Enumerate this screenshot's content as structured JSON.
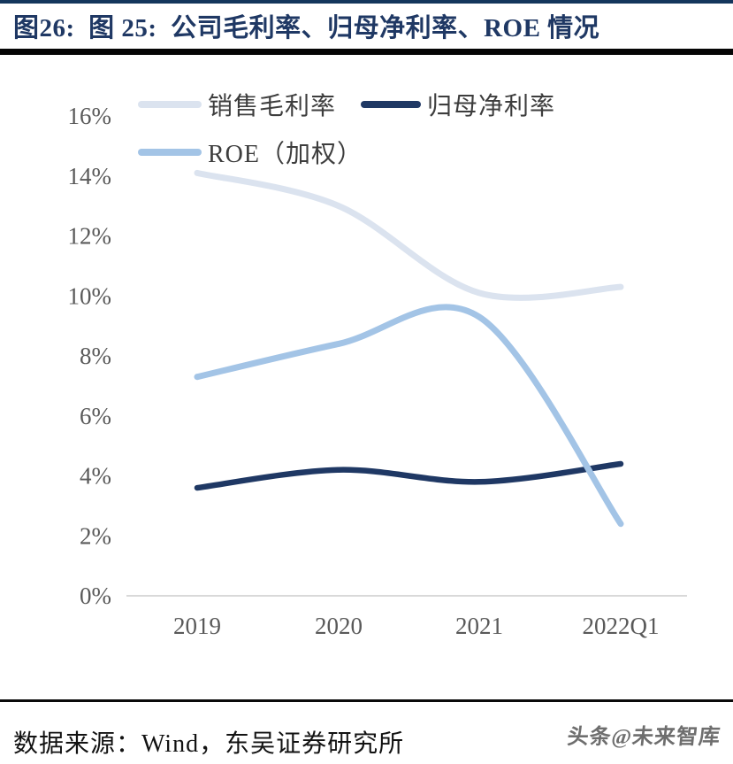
{
  "page": {
    "title": "图26:  图 25:  公司毛利率、归母净利率、ROE 情况",
    "footer_source": "数据来源：Wind，东吴证券研究所",
    "watermark": "头条@未来智库"
  },
  "colors": {
    "title_navy": "#1f3864",
    "gross_margin_line": "#dbe3ef",
    "net_margin_line": "#1f3864",
    "roe_line": "#a3c4e6",
    "axis_line": "#d9d9d9",
    "axis_text": "#595959"
  },
  "legend": {
    "items": [
      {
        "label": "销售毛利率",
        "color": "#dbe3ef"
      },
      {
        "label": "归母净利率",
        "color": "#1f3864"
      },
      {
        "label": "ROE（加权）",
        "color": "#a3c4e6"
      }
    ]
  },
  "chart_data": {
    "type": "line",
    "title": "公司毛利率、归母净利率、ROE 情况",
    "categories": [
      "2019",
      "2020",
      "2021",
      "2022Q1"
    ],
    "series": [
      {
        "id": "gross-margin",
        "name": "销售毛利率",
        "color": "#dbe3ef",
        "width": 7,
        "values": [
          14.1,
          13.0,
          10.1,
          10.3
        ]
      },
      {
        "id": "net-margin",
        "name": "归母净利率",
        "color": "#1f3864",
        "width": 6.5,
        "values": [
          3.6,
          4.2,
          3.8,
          4.4
        ]
      },
      {
        "id": "roe",
        "name": "ROE（加权）",
        "color": "#a3c4e6",
        "width": 7,
        "values": [
          7.3,
          8.4,
          9.3,
          2.4
        ]
      }
    ],
    "y_ticks": [
      0,
      2,
      4,
      6,
      8,
      10,
      12,
      14,
      16
    ],
    "y_tick_suffix": "%",
    "ylim": [
      0,
      16
    ],
    "smooth": true,
    "grid": false,
    "legend_position": "top-left"
  }
}
